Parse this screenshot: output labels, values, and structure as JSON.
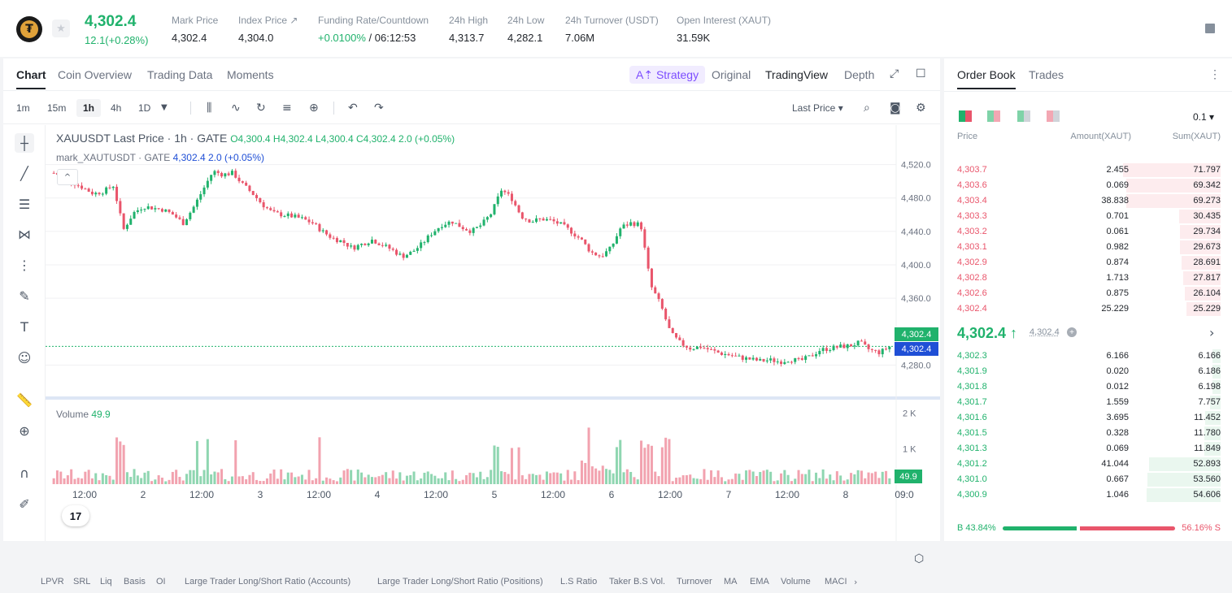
{
  "header": {
    "logo_glyph": "₮",
    "last_price": "4,302.4",
    "change": "12.1(+0.28%)",
    "stats": [
      {
        "label": "Mark Price",
        "value": "4,302.4"
      },
      {
        "label": "Index Price ↗",
        "value": "4,304.0"
      },
      {
        "label": "Funding Rate/Countdown",
        "value_green": "+0.0100%",
        "value": " / 06:12:53"
      },
      {
        "label": "24h High",
        "value": "4,313.7"
      },
      {
        "label": "24h Low",
        "value": "4,282.1"
      },
      {
        "label": "24h Turnover (USDT)",
        "value": "7.06M"
      },
      {
        "label": "Open Interest (XAUT)",
        "value": "31.59K"
      }
    ]
  },
  "chart_tabs": [
    "Chart",
    "Coin Overview",
    "Trading Data",
    "Moments"
  ],
  "views": {
    "strategy": "A⇡ Strategy",
    "original": "Original",
    "tradingview": "TradingView",
    "depth": "Depth"
  },
  "timeframes": [
    "1m",
    "15m",
    "1h",
    "4h",
    "1D"
  ],
  "price_type": "Last Price ▾",
  "legend": {
    "title": "XAUUSDT Last Price · 1h · GATE",
    "ohlc": "O4,300.4 H4,302.4 L4,300.4 C4,302.4 2.0 (+0.05%)",
    "mark_name": "mark_XAUTUSDT · GATE",
    "mark_values": "4,302.4 2.0 (+0.05%)",
    "volume_label": "Volume",
    "volume_value": "49.9"
  },
  "price_tags": {
    "last": "4,302.4",
    "mark": "4,302.4",
    "volume": "49.9"
  },
  "indicators": [
    "LPVR",
    "SRL",
    "Liq",
    "Basis",
    "OI",
    "Large Trader Long/Short Ratio (Accounts)",
    "Large Trader Long/Short Ratio (Positions)",
    "L.S Ratio",
    "Taker B.S Vol.",
    "Turnover",
    "MA",
    "EMA",
    "Volume",
    "MACI"
  ],
  "chart_data": {
    "type": "candlestick",
    "symbol": "XAUUSDT",
    "interval": "1h",
    "y_ticks": [
      "4,520.0",
      "4,480.0",
      "4,440.0",
      "4,400.0",
      "4,360.0",
      "4,280.0"
    ],
    "ylim": [
      4260,
      4540
    ],
    "volume_ticks": [
      "2 K",
      "1 K"
    ],
    "x_ticks": [
      "12:00",
      "2",
      "12:00",
      "3",
      "12:00",
      "4",
      "12:00",
      "5",
      "12:00",
      "6",
      "12:00",
      "7",
      "12:00",
      "8",
      "09:0"
    ],
    "close_path": [
      4510,
      4505,
      4498,
      4492,
      4485,
      4488,
      4495,
      4442,
      4462,
      4470,
      4468,
      4466,
      4460,
      4450,
      4468,
      4490,
      4512,
      4508,
      4510,
      4496,
      4485,
      4472,
      4462,
      4460,
      4458,
      4455,
      4450,
      4440,
      4432,
      4428,
      4420,
      4425,
      4430,
      4424,
      4418,
      4410,
      4415,
      4425,
      4438,
      4448,
      4452,
      4445,
      4440,
      4448,
      4462,
      4490,
      4480,
      4458,
      4452,
      4455,
      4453,
      4448,
      4440,
      4430,
      4415,
      4410,
      4420,
      4445,
      4450,
      4448,
      4375,
      4352,
      4318,
      4306,
      4300,
      4302,
      4298,
      4294,
      4292,
      4289,
      4287,
      4285,
      4286,
      4284,
      4287,
      4285,
      4290,
      4298,
      4300,
      4302,
      4303,
      4307,
      4298,
      4295,
      4302
    ],
    "last": 4302.4
  },
  "book": {
    "tabs": [
      "Order Book",
      "Trades"
    ],
    "precision": "0.1 ▾",
    "headers": {
      "price": "Price",
      "amount": "Amount(XAUT)",
      "sum": "Sum(XAUT)"
    },
    "asks": [
      {
        "p": "4,303.7",
        "a": "2.455",
        "s": "71.797",
        "d": 1.0
      },
      {
        "p": "4,303.6",
        "a": "0.069",
        "s": "69.342",
        "d": 0.966
      },
      {
        "p": "4,303.4",
        "a": "38.838",
        "s": "69.273",
        "d": 0.965
      },
      {
        "p": "4,303.3",
        "a": "0.701",
        "s": "30.435",
        "d": 0.424
      },
      {
        "p": "4,303.2",
        "a": "0.061",
        "s": "29.734",
        "d": 0.414
      },
      {
        "p": "4,303.1",
        "a": "0.982",
        "s": "29.673",
        "d": 0.413
      },
      {
        "p": "4,302.9",
        "a": "0.874",
        "s": "28.691",
        "d": 0.4
      },
      {
        "p": "4,302.8",
        "a": "1.713",
        "s": "27.817",
        "d": 0.387
      },
      {
        "p": "4,302.6",
        "a": "0.875",
        "s": "26.104",
        "d": 0.364
      },
      {
        "p": "4,302.4",
        "a": "25.229",
        "s": "25.229",
        "d": 0.351
      }
    ],
    "mid_price": "4,302.4 ↑",
    "mid_mark": "4,302.4",
    "bids": [
      {
        "p": "4,302.3",
        "a": "6.166",
        "s": "6.166",
        "d": 0.086
      },
      {
        "p": "4,301.9",
        "a": "0.020",
        "s": "6.186",
        "d": 0.086
      },
      {
        "p": "4,301.8",
        "a": "0.012",
        "s": "6.198",
        "d": 0.086
      },
      {
        "p": "4,301.7",
        "a": "1.559",
        "s": "7.757",
        "d": 0.108
      },
      {
        "p": "4,301.6",
        "a": "3.695",
        "s": "11.452",
        "d": 0.16
      },
      {
        "p": "4,301.5",
        "a": "0.328",
        "s": "11.780",
        "d": 0.164
      },
      {
        "p": "4,301.3",
        "a": "0.069",
        "s": "11.849",
        "d": 0.165
      },
      {
        "p": "4,301.2",
        "a": "41.044",
        "s": "52.893",
        "d": 0.737
      },
      {
        "p": "4,301.0",
        "a": "0.667",
        "s": "53.560",
        "d": 0.746
      },
      {
        "p": "4,300.9",
        "a": "1.046",
        "s": "54.606",
        "d": 0.761
      }
    ],
    "buy_ratio": "B 43.84%",
    "sell_ratio": "56.16% S",
    "buy_fraction": 0.4384
  },
  "colors": {
    "up": "#20b26c",
    "down": "#e9556b",
    "up_bar": "#eaf7ef",
    "down_bar": "#fdecee",
    "mark_tag": "#1f4fd6"
  }
}
